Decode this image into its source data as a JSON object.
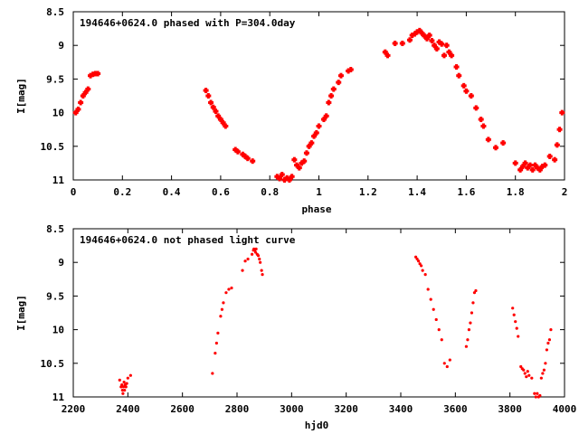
{
  "chart_data": [
    {
      "type": "scatter",
      "title": "194646+0624.0 phased with P=304.0day",
      "xlabel": "phase",
      "ylabel": "I[mag]",
      "xlim": [
        0,
        2
      ],
      "ylim": [
        8.5,
        11
      ],
      "y_inverted": true,
      "xticks": [
        "0",
        "0.2",
        "0.4",
        "0.6",
        "0.8",
        "1",
        "1.2",
        "1.4",
        "1.6",
        "1.8",
        "2"
      ],
      "yticks": [
        "8.5",
        "9",
        "9.5",
        "10",
        "10.5",
        "11"
      ],
      "grid": false,
      "marker_color": "#ff0000",
      "marker": "plus-filled",
      "series": [
        {
          "x": [
            0.01,
            0.02,
            0.03,
            0.04,
            0.05,
            0.06,
            0.07,
            0.08,
            0.09,
            0.1,
            0.54,
            0.55,
            0.56,
            0.57,
            0.58,
            0.59,
            0.6,
            0.61,
            0.62,
            0.66,
            0.67,
            0.69,
            0.7,
            0.71,
            0.73,
            0.83,
            0.84,
            0.85,
            0.86,
            0.87,
            0.88,
            0.89,
            0.9,
            0.91,
            0.92,
            0.93,
            0.94,
            0.95,
            0.96,
            0.97,
            0.98,
            0.99,
            1.0,
            1.02,
            1.03,
            1.04,
            1.05,
            1.06,
            1.08,
            1.09,
            1.12,
            1.13,
            1.27,
            1.28,
            1.31,
            1.34,
            1.37,
            1.38,
            1.39,
            1.4,
            1.41,
            1.42,
            1.43,
            1.44,
            1.45,
            1.46,
            1.47,
            1.48,
            1.49,
            1.5,
            1.51,
            1.52,
            1.53,
            1.54,
            1.56,
            1.57,
            1.59,
            1.6,
            1.62,
            1.64,
            1.66,
            1.67,
            1.69,
            1.72,
            1.75,
            1.8,
            1.82,
            1.83,
            1.84,
            1.85,
            1.86,
            1.87,
            1.88,
            1.89,
            1.9,
            1.91,
            1.92,
            1.94,
            1.96,
            1.97,
            1.98,
            1.99
          ],
          "y": [
            10.0,
            9.95,
            9.85,
            9.75,
            9.7,
            9.65,
            9.45,
            9.43,
            9.42,
            9.42,
            9.67,
            9.75,
            9.85,
            9.92,
            9.98,
            10.05,
            10.1,
            10.15,
            10.2,
            10.55,
            10.58,
            10.62,
            10.65,
            10.68,
            10.72,
            10.95,
            10.98,
            10.92,
            11.0,
            10.97,
            11.0,
            10.95,
            10.7,
            10.78,
            10.82,
            10.75,
            10.72,
            10.6,
            10.5,
            10.45,
            10.35,
            10.3,
            10.2,
            10.1,
            10.05,
            9.85,
            9.75,
            9.65,
            9.55,
            9.45,
            9.38,
            9.36,
            9.1,
            9.15,
            8.97,
            8.97,
            8.92,
            8.85,
            8.83,
            8.8,
            8.78,
            8.82,
            8.86,
            8.9,
            8.85,
            8.93,
            9.0,
            9.05,
            8.95,
            8.98,
            9.15,
            9.0,
            9.1,
            9.15,
            9.32,
            9.45,
            9.6,
            9.68,
            9.75,
            9.93,
            10.1,
            10.2,
            10.4,
            10.52,
            10.45,
            10.75,
            10.85,
            10.8,
            10.75,
            10.82,
            10.78,
            10.85,
            10.78,
            10.82,
            10.85,
            10.8,
            10.78,
            10.65,
            10.7,
            10.48,
            10.25,
            10.0
          ]
        }
      ]
    },
    {
      "type": "scatter",
      "title": "194646+0624.0 not phased light curve",
      "xlabel": "hjd0",
      "ylabel": "I[mag]",
      "xlim": [
        2200,
        4000
      ],
      "ylim": [
        8.5,
        11
      ],
      "y_inverted": true,
      "xticks": [
        "2200",
        "2400",
        "2600",
        "2800",
        "3000",
        "3200",
        "3400",
        "3600",
        "3800",
        "4000"
      ],
      "yticks": [
        "8.5",
        "9",
        "9.5",
        "10",
        "10.5",
        "11"
      ],
      "grid": false,
      "marker_color": "#ff0000",
      "marker": "dot",
      "series": [
        {
          "x": [
            2370,
            2375,
            2378,
            2380,
            2382,
            2384,
            2386,
            2388,
            2390,
            2393,
            2396,
            2400,
            2410,
            2710,
            2720,
            2725,
            2730,
            2740,
            2745,
            2750,
            2760,
            2770,
            2780,
            2820,
            2830,
            2840,
            2855,
            2860,
            2862,
            2865,
            2868,
            2870,
            2874,
            2878,
            2882,
            2885,
            2890,
            2893,
            3455,
            3460,
            3465,
            3470,
            3475,
            3480,
            3490,
            3500,
            3510,
            3520,
            3530,
            3540,
            3550,
            3560,
            3570,
            3580,
            3640,
            3645,
            3650,
            3655,
            3660,
            3665,
            3670,
            3675,
            3810,
            3815,
            3820,
            3825,
            3830,
            3840,
            3845,
            3850,
            3855,
            3860,
            3865,
            3870,
            3880,
            3890,
            3895,
            3900,
            3905,
            3910,
            3915,
            3920,
            3925,
            3930,
            3935,
            3940,
            3945,
            3950
          ],
          "y": [
            10.75,
            10.85,
            10.82,
            10.9,
            10.95,
            10.85,
            10.78,
            10.9,
            10.82,
            10.85,
            10.8,
            10.72,
            10.68,
            10.65,
            10.35,
            10.2,
            10.05,
            9.8,
            9.7,
            9.6,
            9.45,
            9.4,
            9.38,
            9.12,
            8.98,
            8.95,
            8.88,
            8.82,
            8.8,
            8.82,
            8.85,
            8.8,
            8.88,
            8.9,
            8.95,
            9.0,
            9.12,
            9.18,
            8.92,
            8.95,
            8.98,
            9.02,
            9.05,
            9.12,
            9.18,
            9.4,
            9.55,
            9.7,
            9.85,
            10.0,
            10.15,
            10.5,
            10.55,
            10.45,
            10.25,
            10.15,
            10.0,
            9.9,
            9.75,
            9.6,
            9.45,
            9.42,
            9.68,
            9.78,
            9.88,
            9.98,
            10.1,
            10.55,
            10.58,
            10.6,
            10.65,
            10.7,
            10.62,
            10.68,
            10.72,
            10.95,
            11.0,
            10.95,
            11.0,
            10.98,
            10.72,
            10.65,
            10.6,
            10.5,
            10.3,
            10.2,
            10.15,
            10.0
          ]
        }
      ]
    }
  ]
}
